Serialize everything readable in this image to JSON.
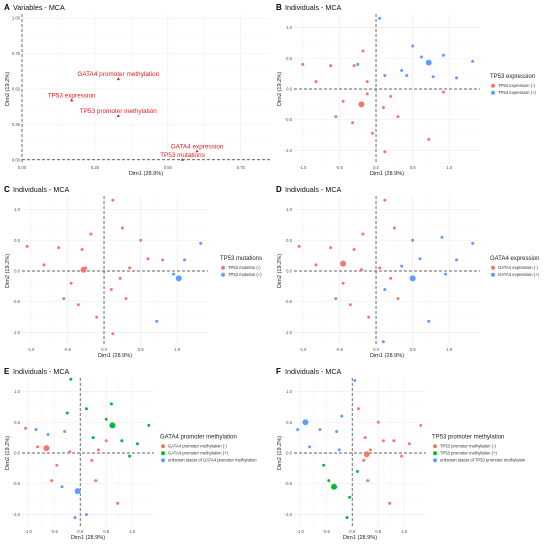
{
  "chart_data": [
    {
      "panel": "A",
      "type": "scatter",
      "title": "Variables - MCA",
      "xlabel": "Dim1 (28.9%)",
      "ylabel": "Dim2 (19.2%)",
      "xlim": [
        0,
        0.85
      ],
      "ylim": [
        -0.03,
        1.03
      ],
      "xticks": [
        "0.00",
        "0.25",
        "0.50",
        "0.75"
      ],
      "yticks": [
        "0.00",
        "0.25",
        "0.50",
        "0.75",
        "1.00"
      ],
      "xtick_values": [
        0,
        0.25,
        0.5,
        0.75
      ],
      "ytick_values": [
        0,
        0.25,
        0.5,
        0.75,
        1.0
      ],
      "point_color": "#e41a1c",
      "points": [
        {
          "label": "GATA4 promoter methylation",
          "x": 0.33,
          "y": 0.57
        },
        {
          "label": "TP53 expression",
          "x": 0.17,
          "y": 0.42
        },
        {
          "label": "TP53 promoter methylation",
          "x": 0.33,
          "y": 0.31
        },
        {
          "label": "GATA4 expression",
          "x": 0.6,
          "y": 0.06
        },
        {
          "label": "TP53 mutations",
          "x": 0.55,
          "y": 0.0
        }
      ]
    },
    {
      "panel": "B",
      "type": "scatter",
      "title": "Individuals - MCA",
      "xlabel": "Dim1 (28.9%)",
      "ylabel": "Dim2 (19.2%)",
      "xlim": [
        -1.12,
        1.42
      ],
      "ylim": [
        -1.22,
        1.22
      ],
      "xticks": [
        "-1.0",
        "-0.5",
        "0.0",
        "0.5",
        "1.0"
      ],
      "yticks": [
        "-1.0",
        "-0.5",
        "0.0",
        "0.5",
        "1.0"
      ],
      "xtick_values": [
        -1,
        -0.5,
        0,
        0.5,
        1
      ],
      "ytick_values": [
        -1,
        -0.5,
        0,
        0.5,
        1
      ],
      "legend": {
        "title": "TP53 expression",
        "entries": [
          {
            "label": "TP53 expression (-)",
            "color": "#f8766d"
          },
          {
            "label": "TP53 expression (+)",
            "color": "#619cff"
          }
        ]
      },
      "series": [
        {
          "name": "TP53 expression (-)",
          "color": "#f8766d",
          "points": [
            [
              -1.0,
              0.4
            ],
            [
              -0.82,
              0.12
            ],
            [
              -0.62,
              0.38
            ],
            [
              -0.3,
              0.38
            ],
            [
              -0.18,
              0.62
            ],
            [
              -0.12,
              0.12
            ],
            [
              -0.55,
              -0.45
            ],
            [
              -0.45,
              -0.2
            ],
            [
              -0.32,
              -0.55
            ],
            [
              -0.05,
              -0.72
            ],
            [
              0.12,
              -1.02
            ],
            [
              0.2,
              -0.12
            ],
            [
              0.3,
              -0.45
            ],
            [
              0.72,
              -0.82
            ],
            [
              0.92,
              -0.05
            ],
            [
              -0.12,
              -0.08
            ],
            [
              0.1,
              -0.3
            ]
          ],
          "centroid": [
            -0.2,
            -0.25
          ]
        },
        {
          "name": "TP53 expression (+)",
          "color": "#619cff",
          "points": [
            [
              -0.25,
              0.4
            ],
            [
              0.12,
              0.22
            ],
            [
              0.35,
              0.3
            ],
            [
              0.5,
              0.7
            ],
            [
              0.62,
              0.52
            ],
            [
              0.78,
              0.2
            ],
            [
              0.92,
              0.55
            ],
            [
              1.1,
              0.18
            ],
            [
              1.32,
              0.45
            ],
            [
              0.42,
              0.22
            ],
            [
              0.05,
              1.15
            ]
          ],
          "centroid": [
            0.72,
            0.43
          ]
        }
      ]
    },
    {
      "panel": "C",
      "type": "scatter",
      "title": "Individuals - MCA",
      "xlabel": "Dim1 (28.9%)",
      "ylabel": "Dim2 (19.2%)",
      "xlim": [
        -1.12,
        1.42
      ],
      "ylim": [
        -1.22,
        1.22
      ],
      "xticks": [
        "-1.0",
        "-0.5",
        "0.0",
        "0.5",
        "1.0"
      ],
      "yticks": [
        "-1.0",
        "-0.5",
        "0.0",
        "0.5",
        "1.0"
      ],
      "xtick_values": [
        -1,
        -0.5,
        0,
        0.5,
        1
      ],
      "ytick_values": [
        -1,
        -0.5,
        0,
        0.5,
        1
      ],
      "legend": {
        "title": "TP53 mutations",
        "entries": [
          {
            "label": "TP53 mutation (-)",
            "color": "#f8766d"
          },
          {
            "label": "TP53 mutation (+)",
            "color": "#619cff"
          }
        ]
      },
      "series": [
        {
          "name": "TP53 mutation (-)",
          "color": "#f8766d",
          "points": [
            [
              -1.05,
              0.4
            ],
            [
              -0.82,
              0.1
            ],
            [
              -0.62,
              0.38
            ],
            [
              -0.3,
              0.35
            ],
            [
              -0.18,
              0.6
            ],
            [
              0.12,
              1.15
            ],
            [
              0.25,
              0.7
            ],
            [
              0.5,
              0.5
            ],
            [
              0.6,
              0.2
            ],
            [
              -0.55,
              -0.45
            ],
            [
              -0.45,
              -0.2
            ],
            [
              -0.35,
              -0.55
            ],
            [
              -0.1,
              -0.75
            ],
            [
              0.12,
              -1.02
            ],
            [
              0.22,
              -0.12
            ],
            [
              0.3,
              -0.45
            ],
            [
              0.35,
              0.05
            ],
            [
              0.8,
              0.18
            ],
            [
              -0.25,
              0.05
            ],
            [
              0.1,
              -0.3
            ]
          ],
          "centroid": [
            -0.28,
            0.02
          ]
        },
        {
          "name": "TP53 mutation (+)",
          "color": "#619cff",
          "points": [
            [
              0.72,
              -0.82
            ],
            [
              0.95,
              -0.05
            ],
            [
              1.1,
              0.18
            ],
            [
              1.32,
              0.45
            ]
          ],
          "centroid": [
            1.02,
            -0.12
          ]
        }
      ]
    },
    {
      "panel": "D",
      "type": "scatter",
      "title": "Individuals - MCA",
      "xlabel": "Dim1 (28.9%)",
      "ylabel": "Dim2 (19.2%)",
      "xlim": [
        -1.12,
        1.42
      ],
      "ylim": [
        -1.22,
        1.22
      ],
      "xticks": [
        "-1.0",
        "-0.5",
        "0.0",
        "0.5",
        "1.0"
      ],
      "yticks": [
        "-1.0",
        "-0.5",
        "0.0",
        "0.5",
        "1.0"
      ],
      "xtick_values": [
        -1,
        -0.5,
        0,
        0.5,
        1
      ],
      "ytick_values": [
        -1,
        -0.5,
        0,
        0.5,
        1
      ],
      "legend": {
        "title": "GATA4 expression",
        "entries": [
          {
            "label": "GATA4 expression (-)",
            "color": "#f8766d"
          },
          {
            "label": "GATA4 expression (+)",
            "color": "#619cff"
          }
        ]
      },
      "series": [
        {
          "name": "GATA4 expression (-)",
          "color": "#f8766d",
          "points": [
            [
              -1.05,
              0.4
            ],
            [
              -0.82,
              0.1
            ],
            [
              -0.62,
              0.38
            ],
            [
              -0.3,
              0.35
            ],
            [
              -0.18,
              0.6
            ],
            [
              0.12,
              1.15
            ],
            [
              0.25,
              0.7
            ],
            [
              -0.55,
              -0.45
            ],
            [
              -0.45,
              -0.2
            ],
            [
              -0.35,
              -0.55
            ],
            [
              -0.1,
              -0.75
            ],
            [
              0.2,
              -0.12
            ],
            [
              0.3,
              -0.45
            ],
            [
              0.05,
              0.05
            ],
            [
              -0.2,
              0.02
            ]
          ],
          "centroid": [
            -0.45,
            0.12
          ]
        },
        {
          "name": "GATA4 expression (+)",
          "color": "#619cff",
          "points": [
            [
              0.1,
              -1.15
            ],
            [
              0.72,
              -0.82
            ],
            [
              0.95,
              -0.05
            ],
            [
              1.1,
              0.18
            ],
            [
              1.32,
              0.45
            ],
            [
              0.5,
              0.5
            ],
            [
              0.6,
              0.2
            ],
            [
              0.35,
              0.08
            ],
            [
              0.9,
              0.55
            ],
            [
              0.12,
              -0.3
            ]
          ],
          "centroid": [
            0.5,
            -0.12
          ]
        }
      ]
    },
    {
      "panel": "E",
      "type": "scatter",
      "title": "Individuals - MCA",
      "xlabel": "Dim1 (28.9%)",
      "ylabel": "Dim2 (19.2%)",
      "xlim": [
        -1.12,
        1.42
      ],
      "ylim": [
        -1.22,
        1.22
      ],
      "xticks": [
        "-1.0",
        "-0.5",
        "0.0",
        "0.5",
        "1.0"
      ],
      "yticks": [
        "-1.0",
        "-0.5",
        "0.0",
        "0.5",
        "1.0"
      ],
      "xtick_values": [
        -1,
        -0.5,
        0,
        0.5,
        1
      ],
      "ytick_values": [
        -1,
        -0.5,
        0,
        0.5,
        1
      ],
      "legend": {
        "title": "GATA4 promoter methylation",
        "entries": [
          {
            "label": "GATA4 promoter methylation (-)",
            "color": "#f8766d"
          },
          {
            "label": "GATA4 promoter methylation (+)",
            "color": "#00ba38"
          },
          {
            "label": "unknown status of GATA4 promoter methylation",
            "color": "#619cff"
          }
        ]
      },
      "series": [
        {
          "name": "GATA4 promoter methylation (-)",
          "color": "#f8766d",
          "points": [
            [
              -1.05,
              0.4
            ],
            [
              -0.82,
              0.1
            ],
            [
              -0.3,
              0.35
            ],
            [
              -0.55,
              -0.45
            ],
            [
              -0.45,
              -0.2
            ],
            [
              0.22,
              -0.12
            ],
            [
              0.3,
              -0.45
            ],
            [
              0.5,
              0.2
            ],
            [
              0.72,
              -0.82
            ],
            [
              0.35,
              0.05
            ],
            [
              -0.2,
              0.02
            ]
          ],
          "centroid": [
            -0.65,
            0.08
          ]
        },
        {
          "name": "GATA4 promoter methylation (+)",
          "color": "#00ba38",
          "points": [
            [
              -0.18,
              1.2
            ],
            [
              0.12,
              0.72
            ],
            [
              0.25,
              0.25
            ],
            [
              0.5,
              0.55
            ],
            [
              0.6,
              0.8
            ],
            [
              0.8,
              0.2
            ],
            [
              0.95,
              -0.05
            ],
            [
              1.1,
              0.15
            ],
            [
              1.32,
              0.45
            ],
            [
              -0.25,
              0.65
            ]
          ],
          "centroid": [
            0.62,
            0.45
          ]
        },
        {
          "name": "unknown status of GATA4 promoter methylation",
          "color": "#619cff",
          "points": [
            [
              -0.85,
              0.38
            ],
            [
              -0.62,
              0.3
            ],
            [
              -0.1,
              -1.05
            ],
            [
              -0.35,
              -0.55
            ],
            [
              0.12,
              -1.0
            ]
          ],
          "centroid": [
            -0.05,
            -0.62
          ]
        }
      ]
    },
    {
      "panel": "F",
      "type": "scatter",
      "title": "Individuals - MCA",
      "xlabel": "Dim1 (28.9%)",
      "ylabel": "Dim2 (19.2%)",
      "xlim": [
        -1.12,
        1.42
      ],
      "ylim": [
        -1.22,
        1.22
      ],
      "xticks": [
        "-1.0",
        "-0.5",
        "0.0",
        "0.5",
        "1.0"
      ],
      "yticks": [
        "-1.0",
        "-0.5",
        "0.0",
        "0.5",
        "1.0"
      ],
      "xtick_values": [
        -1,
        -0.5,
        0,
        0.5,
        1
      ],
      "ytick_values": [
        -1,
        -0.5,
        0,
        0.5,
        1
      ],
      "legend": {
        "title": "TP53 promoter methylation",
        "entries": [
          {
            "label": "TP53 promoter methylation (-)",
            "color": "#f8766d"
          },
          {
            "label": "TP53 promoter methylation (+)",
            "color": "#00ba38"
          },
          {
            "label": "unknown status of TP53 promoter methylation",
            "color": "#619cff"
          }
        ]
      },
      "series": [
        {
          "name": "TP53 promoter methylation (-)",
          "color": "#f8766d",
          "points": [
            [
              0.12,
              0.72
            ],
            [
              0.25,
              0.25
            ],
            [
              0.5,
              0.5
            ],
            [
              0.6,
              0.2
            ],
            [
              0.8,
              0.2
            ],
            [
              0.95,
              -0.05
            ],
            [
              1.1,
              0.15
            ],
            [
              1.32,
              0.45
            ],
            [
              0.22,
              -0.12
            ],
            [
              0.3,
              -0.45
            ],
            [
              0.72,
              -0.82
            ],
            [
              0.35,
              0.05
            ]
          ],
          "centroid": [
            0.28,
            -0.02
          ]
        },
        {
          "name": "TP53 promoter methylation (+)",
          "color": "#00ba38",
          "points": [
            [
              -0.55,
              -0.2
            ],
            [
              -0.45,
              -0.45
            ],
            [
              -0.35,
              -0.55
            ],
            [
              -0.05,
              -0.72
            ],
            [
              0.1,
              -0.3
            ],
            [
              -0.1,
              -1.05
            ]
          ],
          "centroid": [
            -0.35,
            -0.55
          ]
        },
        {
          "name": "unknown status of TP53 promoter methylation",
          "color": "#619cff",
          "points": [
            [
              -1.05,
              0.38
            ],
            [
              -0.82,
              0.1
            ],
            [
              -0.62,
              0.38
            ],
            [
              -0.3,
              0.35
            ],
            [
              -0.2,
              0.6
            ],
            [
              0.05,
              1.18
            ],
            [
              -0.25,
              0.05
            ]
          ],
          "centroid": [
            -0.9,
            0.5
          ]
        }
      ]
    }
  ]
}
